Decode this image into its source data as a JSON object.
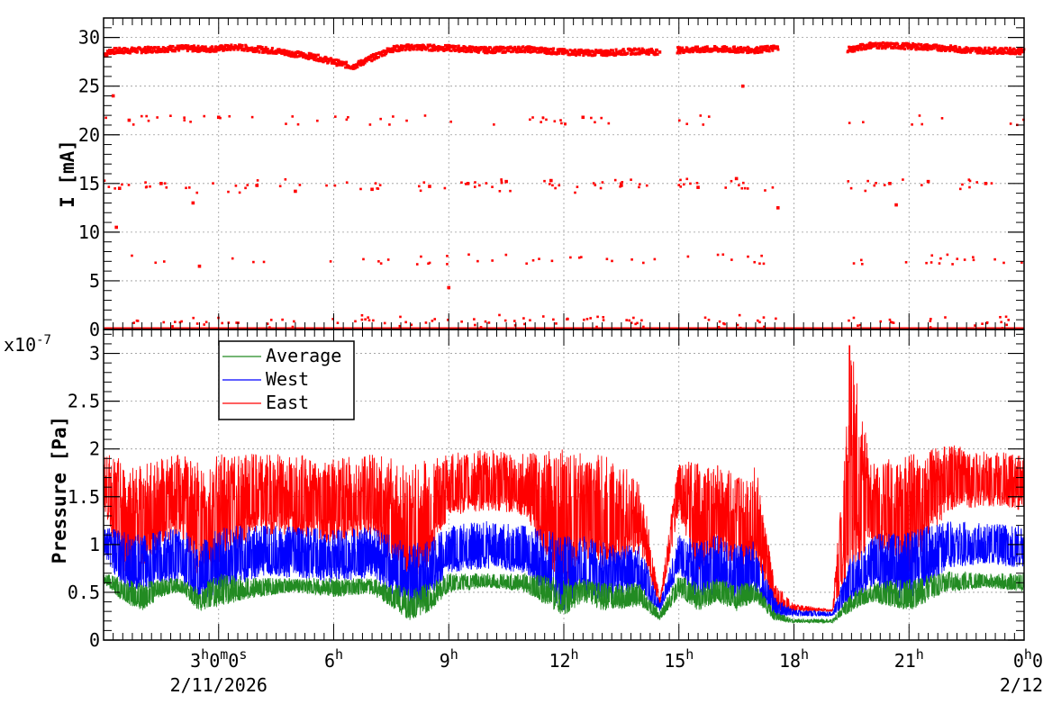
{
  "chart_data": [
    {
      "type": "scatter",
      "ylabel": "I [mA]",
      "ylim": [
        0,
        32
      ],
      "yticks": [
        0,
        5,
        10,
        15,
        20,
        25,
        30
      ],
      "grid": true,
      "x_start": "2026-02-11 00:00",
      "x_end": "2026-02-12 00:00",
      "series": [
        {
          "color": "#ff0000",
          "points": [
            [
              "00:05",
              28.3
            ],
            [
              "00:10",
              28.6
            ],
            [
              "00:15",
              24.0
            ],
            [
              "00:20",
              10.5
            ],
            [
              "00:25",
              14.5
            ],
            [
              "00:40",
              21.5
            ],
            [
              "01:00",
              28.7
            ],
            [
              "01:30",
              15.0
            ],
            [
              "02:00",
              28.9
            ],
            [
              "02:20",
              13.0
            ],
            [
              "02:30",
              6.5
            ],
            [
              "02:45",
              28.8
            ],
            [
              "03:00",
              21.8
            ],
            [
              "03:30",
              29.0
            ],
            [
              "04:00",
              14.8
            ],
            [
              "04:30",
              28.6
            ],
            [
              "05:00",
              14.2
            ],
            [
              "05:30",
              28.0
            ],
            [
              "06:00",
              27.5
            ],
            [
              "06:30",
              27.0
            ],
            [
              "07:00",
              14.4
            ],
            [
              "07:30",
              28.8
            ],
            [
              "08:00",
              29.0
            ],
            [
              "08:30",
              14.7
            ],
            [
              "09:00",
              28.9
            ],
            [
              "09:00",
              4.3
            ],
            [
              "09:30",
              15.0
            ],
            [
              "10:00",
              28.7
            ],
            [
              "10:30",
              15.2
            ],
            [
              "11:00",
              28.8
            ],
            [
              "11:40",
              15.3
            ],
            [
              "12:00",
              28.5
            ],
            [
              "12:30",
              21.8
            ],
            [
              "13:00",
              28.4
            ],
            [
              "13:30",
              14.8
            ],
            [
              "14:00",
              28.6
            ],
            [
              "14:30",
              28.5
            ],
            [
              "15:00",
              28.7
            ],
            [
              "15:30",
              14.6
            ],
            [
              "16:00",
              28.8
            ],
            [
              "16:30",
              15.5
            ],
            [
              "16:40",
              25.0
            ],
            [
              "17:00",
              28.7
            ],
            [
              "17:30",
              28.9
            ],
            [
              "17:35",
              12.5
            ],
            [
              "19:30",
              28.8
            ],
            [
              "20:00",
              29.2
            ],
            [
              "20:30",
              15.0
            ],
            [
              "20:40",
              12.8
            ],
            [
              "21:00",
              29.1
            ],
            [
              "21:30",
              15.2
            ],
            [
              "22:00",
              28.9
            ],
            [
              "22:30",
              28.7
            ],
            [
              "23:00",
              15.0
            ],
            [
              "23:55",
              28.6
            ]
          ]
        }
      ]
    },
    {
      "type": "line",
      "ylabel": "Pressure [Pa]",
      "y_multiplier": "x10",
      "y_multiplier_exp": "-7",
      "ylim": [
        0,
        3.25
      ],
      "yticks": [
        "0",
        "0.5",
        "1",
        "1.5",
        "2",
        "2.5",
        "3"
      ],
      "grid": true,
      "legend": {
        "position": "top-left",
        "entries": [
          "Average",
          "West",
          "East"
        ]
      },
      "xticks": [
        {
          "t": 3,
          "label": "3",
          "sup": "h",
          "label2": "0",
          "sup2": "m",
          "label3": "0",
          "sup3": "s",
          "sub": "2/11/2026"
        },
        {
          "t": 6,
          "label": "6",
          "sup": "h"
        },
        {
          "t": 9,
          "label": "9",
          "sup": "h"
        },
        {
          "t": 12,
          "label": "12",
          "sup": "h"
        },
        {
          "t": 15,
          "label": "15",
          "sup": "h"
        },
        {
          "t": 18,
          "label": "18",
          "sup": "h"
        },
        {
          "t": 21,
          "label": "21",
          "sup": "h"
        },
        {
          "t": 24,
          "label": "0",
          "sup": "h",
          "label2": "0",
          "sub": "2/12"
        }
      ],
      "series": [
        {
          "name": "Average",
          "color": "#228b22",
          "t": [
            0,
            0.5,
            1,
            1.5,
            2,
            2.5,
            3,
            4,
            5,
            6,
            7,
            8,
            8.5,
            9,
            10,
            11,
            12,
            12.5,
            13,
            14,
            14.5,
            15,
            15.5,
            16,
            16.5,
            17,
            17.5,
            18,
            19,
            19.5,
            20,
            21,
            22,
            23,
            24
          ],
          "low": [
            0.6,
            0.4,
            0.3,
            0.45,
            0.5,
            0.3,
            0.35,
            0.45,
            0.5,
            0.45,
            0.48,
            0.2,
            0.3,
            0.5,
            0.55,
            0.5,
            0.25,
            0.4,
            0.3,
            0.35,
            0.2,
            0.45,
            0.3,
            0.4,
            0.3,
            0.4,
            0.2,
            0.18,
            0.18,
            0.3,
            0.4,
            0.3,
            0.5,
            0.55,
            0.5
          ],
          "high": [
            0.7,
            0.65,
            0.6,
            0.65,
            0.65,
            0.55,
            0.7,
            0.65,
            0.65,
            0.65,
            0.65,
            0.55,
            0.6,
            0.7,
            0.7,
            0.7,
            0.65,
            0.65,
            0.6,
            0.6,
            0.3,
            0.7,
            0.6,
            0.65,
            0.6,
            0.6,
            0.3,
            0.22,
            0.22,
            0.5,
            0.6,
            0.65,
            0.72,
            0.7,
            0.7
          ]
        },
        {
          "name": "West",
          "color": "#0000ff",
          "t": [
            0,
            0.5,
            1,
            1.5,
            2,
            2.5,
            3,
            4,
            5,
            6,
            7,
            8,
            8.5,
            9,
            10,
            11,
            12,
            12.5,
            13,
            14,
            14.5,
            15,
            15.5,
            16,
            16.5,
            17,
            17.5,
            18,
            19,
            19.5,
            20,
            21,
            22,
            23,
            24
          ],
          "low": [
            0.9,
            0.5,
            0.5,
            0.6,
            0.6,
            0.4,
            0.5,
            0.65,
            0.65,
            0.6,
            0.65,
            0.3,
            0.45,
            0.7,
            0.75,
            0.7,
            0.3,
            0.5,
            0.4,
            0.5,
            0.3,
            0.7,
            0.4,
            0.5,
            0.4,
            0.5,
            0.25,
            0.25,
            0.25,
            0.4,
            0.55,
            0.4,
            0.75,
            0.8,
            0.75
          ],
          "high": [
            1.2,
            1.15,
            1.1,
            1.15,
            1.2,
            1.0,
            1.2,
            1.2,
            1.2,
            1.15,
            1.2,
            1.0,
            1.05,
            1.2,
            1.25,
            1.2,
            1.1,
            1.1,
            1.05,
            1.0,
            0.4,
            1.1,
            1.05,
            1.1,
            1.0,
            1.05,
            0.45,
            0.32,
            0.3,
            0.9,
            1.1,
            1.15,
            1.25,
            1.22,
            1.2
          ]
        },
        {
          "name": "East",
          "color": "#ff0000",
          "t": [
            0,
            0.5,
            1,
            1.5,
            2,
            2.5,
            3,
            4,
            5,
            6,
            7,
            8,
            8.5,
            9,
            10,
            11,
            12,
            12.5,
            13,
            14,
            14.5,
            15,
            15.5,
            16,
            16.5,
            17,
            17.5,
            18,
            19,
            19.5,
            20,
            21,
            22,
            23,
            24
          ],
          "low": [
            1.4,
            0.7,
            0.7,
            1.0,
            1.1,
            0.6,
            0.8,
            1.1,
            1.1,
            1.0,
            1.1,
            0.5,
            0.8,
            1.3,
            1.35,
            1.3,
            0.5,
            0.9,
            0.7,
            0.9,
            0.35,
            1.3,
            0.7,
            0.9,
            0.7,
            0.8,
            0.3,
            0.3,
            0.3,
            0.7,
            1.0,
            0.7,
            1.35,
            1.4,
            1.35
          ],
          "high": [
            1.95,
            1.9,
            1.85,
            1.9,
            1.95,
            1.85,
            1.95,
            1.95,
            1.95,
            1.9,
            1.95,
            1.85,
            1.9,
            1.95,
            2.0,
            1.95,
            2.0,
            1.95,
            1.95,
            1.7,
            0.45,
            1.9,
            1.85,
            1.85,
            1.75,
            1.85,
            0.6,
            0.38,
            0.32,
            3.1,
            1.85,
            1.95,
            2.05,
            1.98,
            1.95
          ]
        }
      ]
    }
  ]
}
